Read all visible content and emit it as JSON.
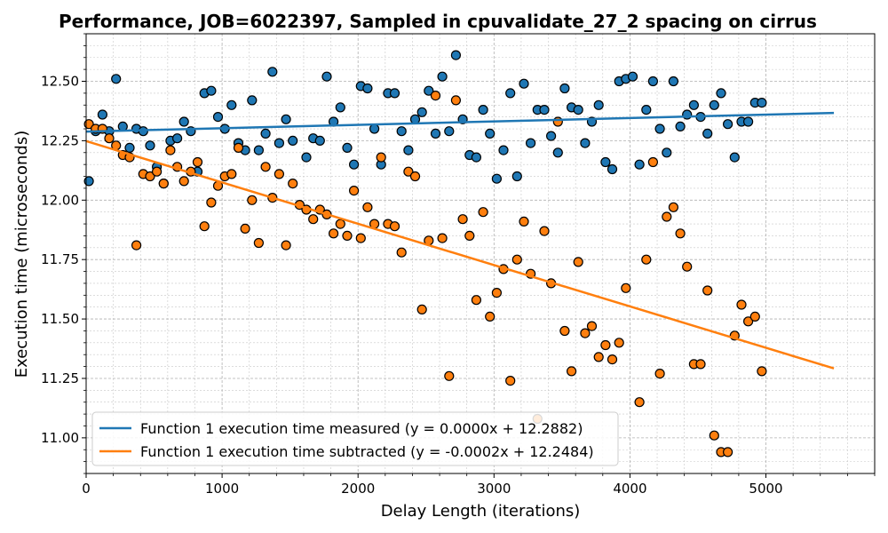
{
  "chart_data": {
    "type": "scatter",
    "title": "Performance, JOB=6022397, Sampled in cpuvalidate_27_2 spacing on cirrus",
    "xlabel": "Delay Length (iterations)",
    "ylabel": "Execution time (microseconds)",
    "xlim": [
      0,
      5800
    ],
    "ylim": [
      10.85,
      12.7
    ],
    "x_ticks": [
      0,
      1000,
      2000,
      3000,
      4000,
      5000
    ],
    "y_ticks": [
      11.0,
      11.25,
      11.5,
      11.75,
      12.0,
      12.25,
      12.5
    ],
    "x_tick_labels": [
      "0",
      "1000",
      "2000",
      "3000",
      "4000",
      "5000"
    ],
    "y_tick_labels": [
      "11.00",
      "11.25",
      "11.50",
      "11.75",
      "12.00",
      "12.25",
      "12.50"
    ],
    "grid": true,
    "legend_position": "lower-left",
    "series": [
      {
        "name": "Function 1 execution time measured (y = 0.0000x + 12.2882)",
        "color": "#1f77b4",
        "fit": {
          "slope": 0.0,
          "intercept": 12.2882,
          "x_range": [
            0,
            5500
          ]
        },
        "points": [
          [
            20,
            12.08
          ],
          [
            70,
            12.29
          ],
          [
            120,
            12.36
          ],
          [
            170,
            12.29
          ],
          [
            220,
            12.51
          ],
          [
            270,
            12.31
          ],
          [
            320,
            12.22
          ],
          [
            370,
            12.3
          ],
          [
            420,
            12.29
          ],
          [
            470,
            12.23
          ],
          [
            520,
            12.14
          ],
          [
            570,
            12.07
          ],
          [
            620,
            12.25
          ],
          [
            670,
            12.26
          ],
          [
            720,
            12.33
          ],
          [
            770,
            12.29
          ],
          [
            820,
            12.12
          ],
          [
            870,
            12.45
          ],
          [
            920,
            12.46
          ],
          [
            970,
            12.35
          ],
          [
            1020,
            12.3
          ],
          [
            1070,
            12.4
          ],
          [
            1120,
            12.24
          ],
          [
            1170,
            12.21
          ],
          [
            1220,
            12.42
          ],
          [
            1270,
            12.21
          ],
          [
            1320,
            12.28
          ],
          [
            1370,
            12.54
          ],
          [
            1420,
            12.24
          ],
          [
            1470,
            12.34
          ],
          [
            1520,
            12.25
          ],
          [
            1620,
            12.18
          ],
          [
            1670,
            12.26
          ],
          [
            1720,
            12.25
          ],
          [
            1770,
            12.52
          ],
          [
            1820,
            12.33
          ],
          [
            1870,
            12.39
          ],
          [
            1920,
            12.22
          ],
          [
            1970,
            12.15
          ],
          [
            2020,
            12.48
          ],
          [
            2070,
            12.47
          ],
          [
            2120,
            12.3
          ],
          [
            2170,
            12.15
          ],
          [
            2220,
            12.45
          ],
          [
            2270,
            12.45
          ],
          [
            2320,
            12.29
          ],
          [
            2370,
            12.21
          ],
          [
            2420,
            12.34
          ],
          [
            2470,
            12.37
          ],
          [
            2520,
            12.46
          ],
          [
            2570,
            12.28
          ],
          [
            2620,
            12.52
          ],
          [
            2670,
            12.29
          ],
          [
            2720,
            12.61
          ],
          [
            2770,
            12.34
          ],
          [
            2820,
            12.19
          ],
          [
            2870,
            12.18
          ],
          [
            2920,
            12.38
          ],
          [
            2970,
            12.28
          ],
          [
            3020,
            12.09
          ],
          [
            3070,
            12.21
          ],
          [
            3120,
            12.45
          ],
          [
            3170,
            12.1
          ],
          [
            3220,
            12.49
          ],
          [
            3270,
            12.24
          ],
          [
            3320,
            12.38
          ],
          [
            3370,
            12.38
          ],
          [
            3420,
            12.27
          ],
          [
            3470,
            12.2
          ],
          [
            3520,
            12.47
          ],
          [
            3570,
            12.39
          ],
          [
            3620,
            12.38
          ],
          [
            3670,
            12.24
          ],
          [
            3720,
            12.33
          ],
          [
            3770,
            12.4
          ],
          [
            3820,
            12.16
          ],
          [
            3870,
            12.13
          ],
          [
            3920,
            12.5
          ],
          [
            3970,
            12.51
          ],
          [
            4020,
            12.52
          ],
          [
            4070,
            12.15
          ],
          [
            4120,
            12.38
          ],
          [
            4170,
            12.5
          ],
          [
            4220,
            12.3
          ],
          [
            4270,
            12.2
          ],
          [
            4320,
            12.5
          ],
          [
            4370,
            12.31
          ],
          [
            4420,
            12.36
          ],
          [
            4470,
            12.4
          ],
          [
            4520,
            12.35
          ],
          [
            4570,
            12.28
          ],
          [
            4620,
            12.4
          ],
          [
            4670,
            12.45
          ],
          [
            4720,
            12.32
          ],
          [
            4770,
            12.18
          ],
          [
            4820,
            12.33
          ],
          [
            4870,
            12.33
          ],
          [
            4920,
            12.41
          ],
          [
            4970,
            12.41
          ]
        ]
      },
      {
        "name": "Function 1 execution time subtracted (y = -0.0002x + 12.2484)",
        "color": "#ff7f0e",
        "fit": {
          "slope": -0.0002,
          "intercept": 12.2484,
          "x_range": [
            0,
            5500
          ]
        },
        "points": [
          [
            20,
            12.32
          ],
          [
            70,
            12.3
          ],
          [
            120,
            12.3
          ],
          [
            170,
            12.26
          ],
          [
            220,
            12.23
          ],
          [
            270,
            12.19
          ],
          [
            320,
            12.18
          ],
          [
            370,
            11.81
          ],
          [
            420,
            12.11
          ],
          [
            470,
            12.1
          ],
          [
            520,
            12.12
          ],
          [
            570,
            12.07
          ],
          [
            620,
            12.21
          ],
          [
            670,
            12.14
          ],
          [
            720,
            12.08
          ],
          [
            770,
            12.12
          ],
          [
            820,
            12.16
          ],
          [
            870,
            11.89
          ],
          [
            920,
            11.99
          ],
          [
            970,
            12.06
          ],
          [
            1020,
            12.1
          ],
          [
            1070,
            12.11
          ],
          [
            1120,
            12.22
          ],
          [
            1170,
            11.88
          ],
          [
            1220,
            12.0
          ],
          [
            1270,
            11.82
          ],
          [
            1320,
            12.14
          ],
          [
            1370,
            12.01
          ],
          [
            1420,
            12.11
          ],
          [
            1470,
            11.81
          ],
          [
            1520,
            12.07
          ],
          [
            1570,
            11.98
          ],
          [
            1620,
            11.96
          ],
          [
            1670,
            11.92
          ],
          [
            1720,
            11.96
          ],
          [
            1770,
            11.94
          ],
          [
            1820,
            11.86
          ],
          [
            1870,
            11.9
          ],
          [
            1920,
            11.85
          ],
          [
            1970,
            12.04
          ],
          [
            2020,
            11.84
          ],
          [
            2070,
            11.97
          ],
          [
            2120,
            11.9
          ],
          [
            2170,
            12.18
          ],
          [
            2220,
            11.9
          ],
          [
            2270,
            11.89
          ],
          [
            2320,
            11.78
          ],
          [
            2370,
            12.12
          ],
          [
            2420,
            12.1
          ],
          [
            2470,
            11.54
          ],
          [
            2520,
            11.83
          ],
          [
            2570,
            12.44
          ],
          [
            2620,
            11.84
          ],
          [
            2670,
            11.26
          ],
          [
            2720,
            12.42
          ],
          [
            2770,
            11.92
          ],
          [
            2820,
            11.85
          ],
          [
            2870,
            11.58
          ],
          [
            2920,
            11.95
          ],
          [
            2970,
            11.51
          ],
          [
            3020,
            11.61
          ],
          [
            3070,
            11.71
          ],
          [
            3120,
            11.24
          ],
          [
            3170,
            11.75
          ],
          [
            3220,
            11.91
          ],
          [
            3270,
            11.69
          ],
          [
            3320,
            11.08
          ],
          [
            3370,
            11.87
          ],
          [
            3420,
            11.65
          ],
          [
            3470,
            12.33
          ],
          [
            3520,
            11.45
          ],
          [
            3570,
            11.28
          ],
          [
            3620,
            11.74
          ],
          [
            3670,
            11.44
          ],
          [
            3720,
            11.47
          ],
          [
            3770,
            11.34
          ],
          [
            3820,
            11.39
          ],
          [
            3870,
            11.33
          ],
          [
            3920,
            11.4
          ],
          [
            3970,
            11.63
          ],
          [
            4070,
            11.15
          ],
          [
            4120,
            11.75
          ],
          [
            4170,
            12.16
          ],
          [
            4220,
            11.27
          ],
          [
            4270,
            11.93
          ],
          [
            4320,
            11.97
          ],
          [
            4370,
            11.86
          ],
          [
            4420,
            11.72
          ],
          [
            4470,
            11.31
          ],
          [
            4520,
            11.31
          ],
          [
            4570,
            11.62
          ],
          [
            4620,
            11.01
          ],
          [
            4670,
            10.94
          ],
          [
            4720,
            10.94
          ],
          [
            4770,
            11.43
          ],
          [
            4820,
            11.56
          ],
          [
            4870,
            11.49
          ],
          [
            4920,
            11.51
          ],
          [
            4970,
            11.28
          ]
        ]
      }
    ]
  }
}
